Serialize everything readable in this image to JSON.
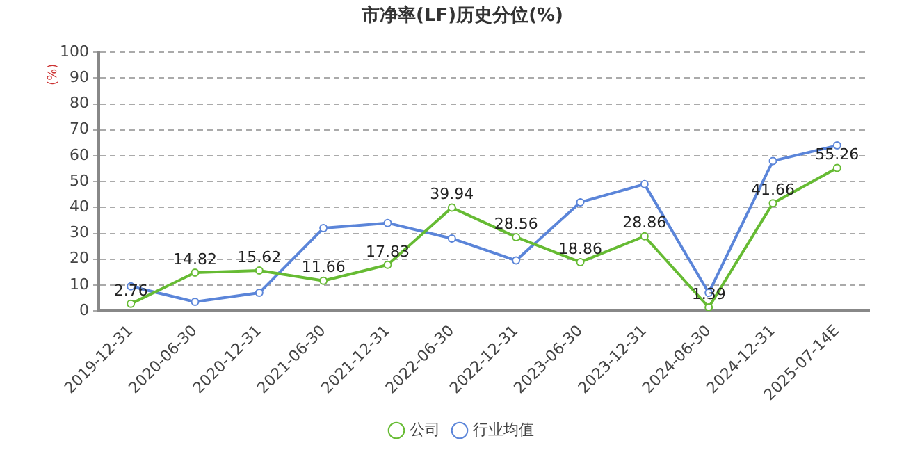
{
  "chart_data": {
    "type": "line",
    "title": "市净率(LF)历史分位(%)",
    "ylabel": "(%)",
    "categories": [
      "2019-12-31",
      "2020-06-30",
      "2020-12-31",
      "2021-06-30",
      "2021-12-31",
      "2022-06-30",
      "2022-12-31",
      "2023-06-30",
      "2023-12-31",
      "2024-06-30",
      "2024-12-31",
      "2025-07-14E"
    ],
    "series": [
      {
        "name": "公司",
        "color": "#66bb33",
        "values": [
          2.76,
          14.82,
          15.62,
          11.66,
          17.83,
          39.94,
          28.56,
          18.86,
          28.86,
          1.39,
          41.66,
          55.26
        ],
        "value_labels": [
          "2.76",
          "14.82",
          "15.62",
          "11.66",
          "17.83",
          "39.94",
          "28.56",
          "18.86",
          "28.86",
          "1.39",
          "41.66",
          "55.26"
        ]
      },
      {
        "name": "行业均值",
        "color": "#5b85d9",
        "values": [
          9.5,
          3.5,
          7,
          32,
          34,
          28,
          19.5,
          42,
          49,
          7,
          58,
          64
        ]
      }
    ],
    "ylim": [
      0,
      100
    ],
    "yticks": [
      0,
      10,
      20,
      30,
      40,
      50,
      60,
      70,
      80,
      90,
      100
    ],
    "grid": "y",
    "legend": "bottom",
    "marker": "circle",
    "line_style": "solid"
  }
}
